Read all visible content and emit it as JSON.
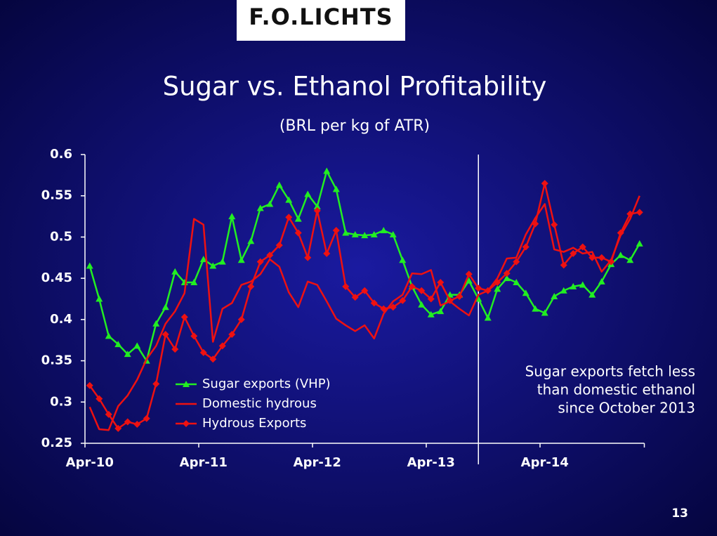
{
  "logo": "F.O.LICHTS",
  "slide_number": 13,
  "chart_data": {
    "type": "line",
    "title": "Sugar vs. Ethanol Profitability",
    "subtitle": "(BRL per kg of ATR)",
    "categories": [
      "Apr-10",
      null,
      null,
      null,
      null,
      null,
      null,
      null,
      null,
      null,
      null,
      null,
      "Apr-11",
      null,
      null,
      null,
      null,
      null,
      null,
      null,
      null,
      null,
      null,
      null,
      "Apr-12",
      null,
      null,
      null,
      null,
      null,
      null,
      null,
      null,
      null,
      null,
      null,
      "Apr-13",
      null,
      null,
      null,
      null,
      null,
      null,
      null,
      null,
      null,
      null,
      null,
      "Apr-14",
      null,
      null,
      null,
      null,
      null,
      null,
      null,
      null,
      null,
      null
    ],
    "ylim": [
      0.25,
      0.6
    ],
    "yticks": [
      0.25,
      0.3,
      0.35,
      0.4,
      0.45,
      0.5,
      0.55,
      0.6
    ],
    "legend": "lower left",
    "annotation": [
      "Sugar exports fetch less",
      "than domestic ethanol",
      "since October 2013"
    ],
    "series": [
      {
        "name": "Sugar exports (VHP)",
        "color": "#22ee22",
        "marker": "triangle",
        "values": [
          0.465,
          0.425,
          0.38,
          0.37,
          0.358,
          0.368,
          0.35,
          0.395,
          0.415,
          0.458,
          0.445,
          0.445,
          0.473,
          0.465,
          0.47,
          0.525,
          0.472,
          0.495,
          0.535,
          0.54,
          0.563,
          0.545,
          0.522,
          0.552,
          0.537,
          0.58,
          0.558,
          0.505,
          0.503,
          0.502,
          0.503,
          0.508,
          0.503,
          0.472,
          0.44,
          0.418,
          0.406,
          0.41,
          0.43,
          0.43,
          0.447,
          0.425,
          0.402,
          0.437,
          0.45,
          0.445,
          0.432,
          0.413,
          0.408,
          0.428,
          0.435,
          0.44,
          0.442,
          0.43,
          0.446,
          0.467,
          0.478,
          0.472,
          0.492
        ]
      },
      {
        "name": "Domestic hydrous",
        "color": "#ee1111",
        "marker": "none",
        "values": [
          0.294,
          0.267,
          0.266,
          0.295,
          0.308,
          0.327,
          0.352,
          0.368,
          0.395,
          0.41,
          0.432,
          0.522,
          0.515,
          0.373,
          0.413,
          0.42,
          0.442,
          0.446,
          0.455,
          0.473,
          0.464,
          0.433,
          0.415,
          0.446,
          0.442,
          0.422,
          0.401,
          0.393,
          0.386,
          0.393,
          0.377,
          0.407,
          0.422,
          0.43,
          0.456,
          0.455,
          0.46,
          0.417,
          0.422,
          0.413,
          0.405,
          0.43,
          0.435,
          0.45,
          0.474,
          0.475,
          0.503,
          0.523,
          0.54,
          0.485,
          0.482,
          0.487,
          0.48,
          0.482,
          0.458,
          0.472,
          0.502,
          0.522,
          0.55
        ]
      },
      {
        "name": "Hydrous Exports",
        "color": "#ee1111",
        "marker": "diamond",
        "values": [
          0.32,
          0.304,
          0.285,
          0.268,
          0.276,
          0.273,
          0.28,
          0.322,
          0.382,
          0.364,
          0.403,
          0.38,
          0.36,
          0.352,
          0.368,
          0.382,
          0.4,
          0.44,
          0.47,
          0.478,
          0.49,
          0.524,
          0.505,
          0.475,
          0.532,
          0.48,
          0.508,
          0.44,
          0.427,
          0.435,
          0.42,
          0.413,
          0.415,
          0.423,
          0.44,
          0.435,
          0.425,
          0.445,
          0.423,
          0.428,
          0.455,
          0.438,
          0.435,
          0.445,
          0.456,
          0.47,
          0.488,
          0.516,
          0.565,
          0.515,
          0.466,
          0.48,
          0.488,
          0.475,
          0.475,
          0.47,
          0.505,
          0.528,
          0.53
        ]
      }
    ]
  }
}
